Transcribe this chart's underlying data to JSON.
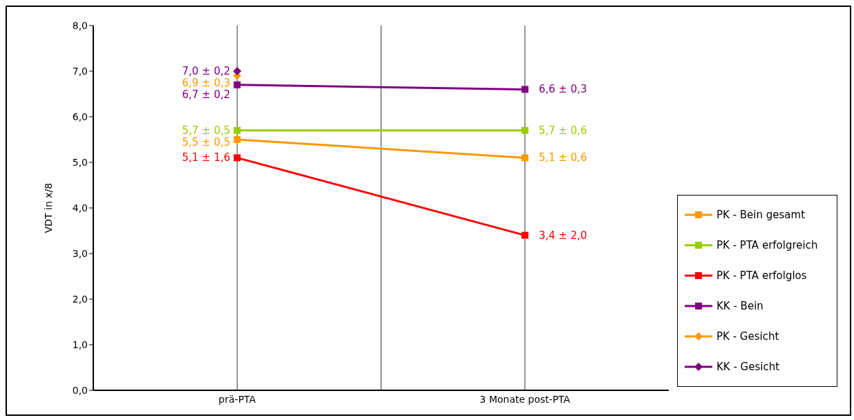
{
  "chart_data": {
    "type": "line",
    "ylabel": "VDT  in x/8",
    "categories": [
      "prä-PTA",
      "3 Monate post-PTA"
    ],
    "ylim": [
      0,
      8
    ],
    "yticks": [
      {
        "value": 0,
        "label": "0,0"
      },
      {
        "value": 1,
        "label": "1,0"
      },
      {
        "value": 2,
        "label": "2,0"
      },
      {
        "value": 3,
        "label": "3,0"
      },
      {
        "value": 4,
        "label": "4,0"
      },
      {
        "value": 5,
        "label": "5,0"
      },
      {
        "value": 6,
        "label": "6,0"
      },
      {
        "value": 7,
        "label": "7,0"
      },
      {
        "value": 8,
        "label": "8,0"
      }
    ],
    "grid": "x",
    "legend": "right",
    "line_style": "solid",
    "series": [
      {
        "name": "PK - Bein gesamt",
        "color": "#ff9900",
        "marker": "square",
        "values": [
          5.5,
          5.1
        ],
        "value_labels": [
          "5,5 ± 0,5",
          "5,1 ± 0,6"
        ]
      },
      {
        "name": "PK - PTA erfolgreich",
        "color": "#99cc00",
        "marker": "square",
        "values": [
          5.7,
          5.7
        ],
        "value_labels": [
          "5,7 ± 0,5",
          "5,7 ± 0,6"
        ]
      },
      {
        "name": "PK - PTA erfolglos",
        "color": "#ff0000",
        "marker": "square",
        "values": [
          5.1,
          3.4
        ],
        "value_labels": [
          "5,1 ± 1,6",
          "3,4 ± 2,0"
        ]
      },
      {
        "name": "KK - Bein",
        "color": "#800080",
        "marker": "square",
        "values": [
          6.7,
          6.6
        ],
        "value_labels": [
          "6,7 ± 0,2",
          "6,6 ± 0,3"
        ]
      },
      {
        "name": "PK - Gesicht",
        "color": "#ff9900",
        "marker": "diamond",
        "values": [
          6.9,
          null
        ],
        "value_labels": [
          "6,9 ± 0,3",
          null
        ]
      },
      {
        "name": "KK - Gesicht",
        "color": "#800080",
        "marker": "diamond",
        "values": [
          7.0,
          null
        ],
        "value_labels": [
          "7,0 ± 0,2",
          null
        ]
      }
    ]
  }
}
